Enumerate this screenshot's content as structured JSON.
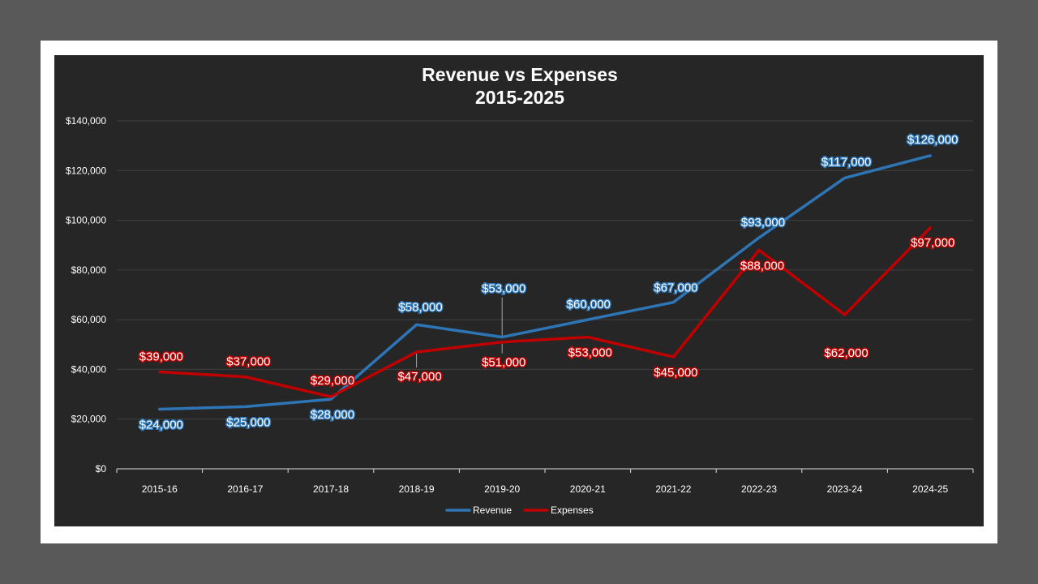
{
  "chart_data": {
    "type": "line",
    "title": "Revenue vs Expenses",
    "subtitle": "2015-2025",
    "categories": [
      "2015-16",
      "2016-17",
      "2017-18",
      "2018-19",
      "2019-20",
      "2020-21",
      "2021-22",
      "2022-23",
      "2023-24",
      "2024-25"
    ],
    "series": [
      {
        "name": "Revenue",
        "color": "#2e75b6",
        "values": [
          24000,
          25000,
          28000,
          58000,
          53000,
          60000,
          67000,
          93000,
          117000,
          126000
        ],
        "labels": [
          "$24,000",
          "$25,000",
          "$28,000",
          "$58,000",
          "$53,000",
          "$60,000",
          "$67,000",
          "$93,000",
          "$117,000",
          "$126,000"
        ]
      },
      {
        "name": "Expenses",
        "color": "#c00000",
        "values": [
          39000,
          37000,
          29000,
          47000,
          51000,
          53000,
          45000,
          88000,
          62000,
          97000
        ],
        "labels": [
          "$39,000",
          "$37,000",
          "$29,000",
          "$47,000",
          "$51,000",
          "$53,000",
          "$45,000",
          "$88,000",
          "$62,000",
          "$97,000"
        ]
      }
    ],
    "ylim": [
      0,
      140000
    ],
    "yticks": [
      0,
      20000,
      40000,
      60000,
      80000,
      100000,
      120000,
      140000
    ],
    "ytick_labels": [
      "$0",
      "$20,000",
      "$40,000",
      "$60,000",
      "$80,000",
      "$100,000",
      "$120,000",
      "$140,000"
    ],
    "xlabel": "",
    "ylabel": "",
    "grid": true,
    "legend_position": "bottom"
  }
}
